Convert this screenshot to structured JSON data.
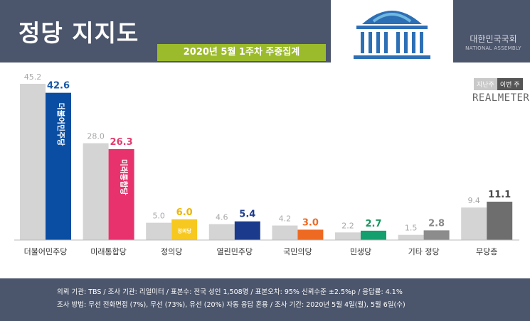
{
  "header": {
    "title": "정당 지지도",
    "subtitle": "2020년 5월 1주차 주중집계",
    "assembly_ko": "대한민국국회",
    "assembly_en": "NATIONAL ASSEMBLY"
  },
  "legend": {
    "prev": "지난주",
    "curr": "이번 주"
  },
  "brand": "REALMETER",
  "colors": {
    "header_bg": "#4b556b",
    "accent_green": "#9cbb2c",
    "prev_bar": "#d4d4d4",
    "logo_blue": "#2d6fb5"
  },
  "chart_data": {
    "type": "bar",
    "title": "정당 지지도",
    "subtitle": "2020년 5월 1주차 주중집계",
    "categories": [
      "더불어민주당",
      "미래통합당",
      "정의당",
      "열린민주당",
      "국민의당",
      "민생당",
      "기타 정당",
      "무당층"
    ],
    "series": [
      {
        "name": "지난주",
        "values": [
          45.2,
          28.0,
          5.0,
          4.6,
          4.2,
          2.2,
          1.5,
          9.4
        ]
      },
      {
        "name": "이번 주",
        "values": [
          42.6,
          26.3,
          6.0,
          5.4,
          3.0,
          2.7,
          2.8,
          11.1
        ]
      }
    ],
    "value_labels_prev": [
      "45.2",
      "28.0",
      "5.0",
      "4.6",
      "4.2",
      "2.2",
      "1.5",
      "9.4"
    ],
    "value_labels_curr": [
      "42.6",
      "26.3",
      "6.0",
      "5.4",
      "3.0",
      "2.7",
      "2.8",
      "11.1"
    ],
    "current_colors": [
      "#0a4ea3",
      "#e8326e",
      "#f7c81f",
      "#1b3a8c",
      "#ee6a22",
      "#13a06e",
      "#8c8c8c",
      "#6e6e6e"
    ],
    "label_colors": [
      "#1a5aa8",
      "#e23c6e",
      "#f0b400",
      "#1d3c8f",
      "#ee6a22",
      "#17955c",
      "#8a8a8a",
      "#4a4a4a"
    ],
    "bar_texts": [
      "더불어민주당",
      "미래통합당",
      "정의당",
      "",
      "",
      "",
      "",
      ""
    ],
    "ylim": [
      0,
      45.2
    ],
    "grid": false,
    "legend_position": "top-right"
  },
  "footer": {
    "line1": "의뢰 기관: TBS / 조사 기관: 리얼미터 / 표본수: 전국 성인 1,508명 / 표본오차: 95% 신뢰수준 ±2.5%p / 응답률: 4.1%",
    "line2": "조사 방법: 무선 전화면접 (7%), 무선 (73%), 유선 (20%) 자동 응답 혼용 / 조사 기간: 2020년 5월 4일(월), 5월 6일(수)"
  }
}
